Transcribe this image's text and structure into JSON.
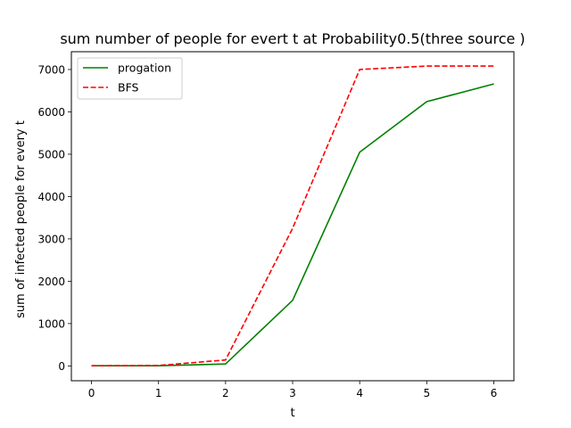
{
  "chart_data": {
    "type": "line",
    "title": "sum number of people for evert t at Probability0.5(three source )",
    "xlabel": "t",
    "ylabel": "sum of infected people for every t",
    "x": [
      0,
      1,
      2,
      3,
      4,
      5,
      6
    ],
    "xlim": [
      -0.3,
      6.3
    ],
    "ylim": [
      -350,
      7420
    ],
    "xticks": [
      0,
      1,
      2,
      3,
      4,
      5,
      6
    ],
    "yticks": [
      0,
      1000,
      2000,
      3000,
      4000,
      5000,
      6000,
      7000
    ],
    "grid": false,
    "legend_position": "upper-left",
    "series": [
      {
        "name": "progation",
        "values": [
          3,
          3,
          45,
          1550,
          5050,
          6240,
          6660
        ],
        "color": "#008000",
        "dash": "solid"
      },
      {
        "name": "BFS",
        "values": [
          3,
          10,
          140,
          3250,
          7000,
          7080,
          7080
        ],
        "color": "#ff0000",
        "dash": "dashed"
      }
    ]
  }
}
